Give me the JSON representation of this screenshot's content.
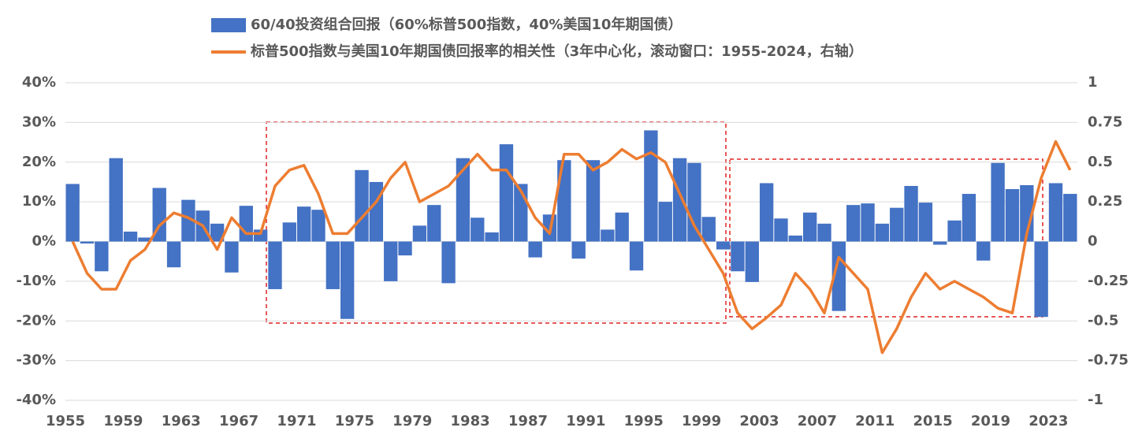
{
  "chart_data": {
    "type": "bar",
    "legend": "top",
    "categories": [
      "1955",
      null,
      null,
      null,
      "1959",
      null,
      null,
      null,
      "1963",
      null,
      null,
      null,
      "1967",
      null,
      null,
      null,
      "1971",
      null,
      null,
      null,
      "1975",
      null,
      null,
      null,
      "1979",
      null,
      null,
      null,
      "1983",
      null,
      null,
      null,
      "1987",
      null,
      null,
      null,
      "1991",
      null,
      null,
      null,
      "1995",
      null,
      null,
      null,
      "1999",
      null,
      null,
      null,
      "2003",
      null,
      null,
      null,
      "2007",
      null,
      null,
      null,
      "2011",
      null,
      null,
      null,
      "2015",
      null,
      null,
      null,
      "2019",
      null,
      null,
      null,
      "2023",
      null
    ],
    "series": [
      {
        "name": "60/40投资组合回报（60%标普500指数，40%美国10年期国债）",
        "type": "bar",
        "color": "#4472c4",
        "values": [
          14.5,
          -0.5,
          -7.5,
          21,
          2.5,
          1,
          13.5,
          -6.5,
          10.5,
          7.8,
          4.5,
          -7.8,
          9,
          3,
          -12,
          4.8,
          8.8,
          8,
          -12,
          -19.5,
          18,
          15,
          -10,
          -3.5,
          4,
          9.2,
          -10.5,
          21,
          6,
          2.3,
          24.5,
          14.5,
          -4,
          6.8,
          20.5,
          -4.3,
          20.5,
          3,
          7.3,
          -7.3,
          28,
          10,
          21,
          19.8,
          6.2,
          -2,
          -7.5,
          -10.2,
          14.7,
          5.8,
          1.5,
          7.3,
          4.5,
          -17.5,
          9.2,
          9.6,
          4.5,
          8.5,
          14,
          9.8,
          -0.8,
          5.3,
          12,
          -4.8,
          19.8,
          13.2,
          14.2,
          -19,
          14.7,
          12
        ]
      },
      {
        "name": "标普500指数与美国10年期国债回报率的相关性（3年中心化，滚动窗口：1955-2024，右轴）",
        "type": "line",
        "axis": "y2",
        "color": "#ed7d31",
        "values": [
          0,
          -0.2,
          -0.3,
          -0.3,
          -0.12,
          -0.05,
          0.1,
          0.18,
          0.15,
          0.1,
          -0.05,
          0.15,
          0.05,
          0.05,
          0.35,
          0.45,
          0.48,
          0.3,
          0.05,
          0.05,
          0.15,
          0.25,
          0.4,
          0.5,
          0.25,
          0.3,
          0.35,
          0.45,
          0.55,
          0.45,
          0.45,
          0.32,
          0.15,
          0.05,
          0.55,
          0.55,
          0.45,
          0.5,
          0.58,
          0.52,
          0.56,
          0.5,
          0.3,
          0.1,
          -0.05,
          -0.2,
          -0.45,
          -0.55,
          -0.48,
          -0.4,
          -0.2,
          -0.3,
          -0.45,
          -0.1,
          -0.2,
          -0.3,
          -0.7,
          -0.55,
          -0.35,
          -0.2,
          -0.3,
          -0.25,
          -0.3,
          -0.35,
          -0.42,
          -0.45,
          0.05,
          0.4,
          0.63,
          0.45
        ]
      }
    ],
    "ylim": [
      -40,
      40
    ],
    "yticks": [
      {
        "value": -40,
        "label": "-40%"
      },
      {
        "value": -30,
        "label": "-30%"
      },
      {
        "value": -20,
        "label": "-20%"
      },
      {
        "value": -10,
        "label": "-10%"
      },
      {
        "value": 0,
        "label": "0%"
      },
      {
        "value": 10,
        "label": "10%"
      },
      {
        "value": 20,
        "label": "20%"
      },
      {
        "value": 30,
        "label": "30%"
      },
      {
        "value": 40,
        "label": "40%"
      }
    ],
    "y2lim": [
      -1,
      1
    ],
    "y2ticks": [
      -1,
      -0.75,
      -0.5,
      -0.25,
      0,
      0.25,
      0.5,
      0.75,
      1
    ],
    "grid": true
  }
}
